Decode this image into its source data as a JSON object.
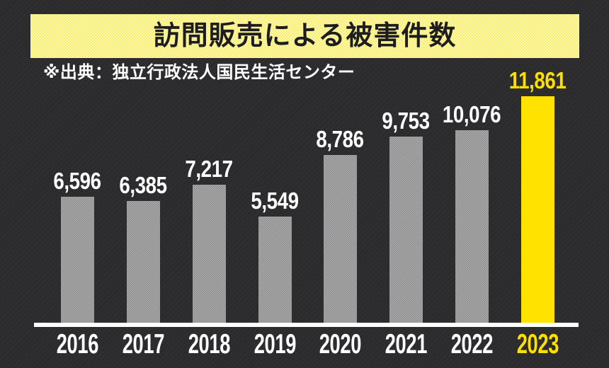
{
  "header": {
    "title": "訪問販売による被害件数"
  },
  "source_note": "※出典：独立行政法人国民生活センター",
  "colors": {
    "background": "#2b2b2d",
    "banner_yellow": "#f9ed69",
    "title_text": "#1d1d1f",
    "bar_gray": "#9c9c9c",
    "highlight_yellow": "#ffe200",
    "highlight_label_yellow": "#ffdf00",
    "label_white": "#ffffff",
    "axis_white": "#ffffff"
  },
  "chart_data": {
    "type": "bar",
    "title": "訪問販売による被害件数",
    "source_note": "※出典：独立行政法人国民生活センター",
    "categories": [
      "2016",
      "2017",
      "2018",
      "2019",
      "2020",
      "2021",
      "2022",
      "2023"
    ],
    "values": [
      6596,
      6385,
      7217,
      5549,
      8786,
      9753,
      10076,
      11861
    ],
    "value_labels": [
      "6,596",
      "6,385",
      "7,217",
      "5,549",
      "8,786",
      "9,753",
      "10,076",
      "11,861"
    ],
    "xlabel": "",
    "ylabel": "",
    "ylim": [
      0,
      11861
    ],
    "grid": false,
    "legend": "none",
    "highlight_category": "2023",
    "bars": [
      {
        "year": "2016",
        "value": 6596,
        "label": "6,596",
        "highlight": false
      },
      {
        "year": "2017",
        "value": 6385,
        "label": "6,385",
        "highlight": false
      },
      {
        "year": "2018",
        "value": 7217,
        "label": "7,217",
        "highlight": false
      },
      {
        "year": "2019",
        "value": 5549,
        "label": "5,549",
        "highlight": false
      },
      {
        "year": "2020",
        "value": 8786,
        "label": "8,786",
        "highlight": false
      },
      {
        "year": "2021",
        "value": 9753,
        "label": "9,753",
        "highlight": false
      },
      {
        "year": "2022",
        "value": 10076,
        "label": "10,076",
        "highlight": false
      },
      {
        "year": "2023",
        "value": 11861,
        "label": "11,861",
        "highlight": true
      }
    ]
  }
}
